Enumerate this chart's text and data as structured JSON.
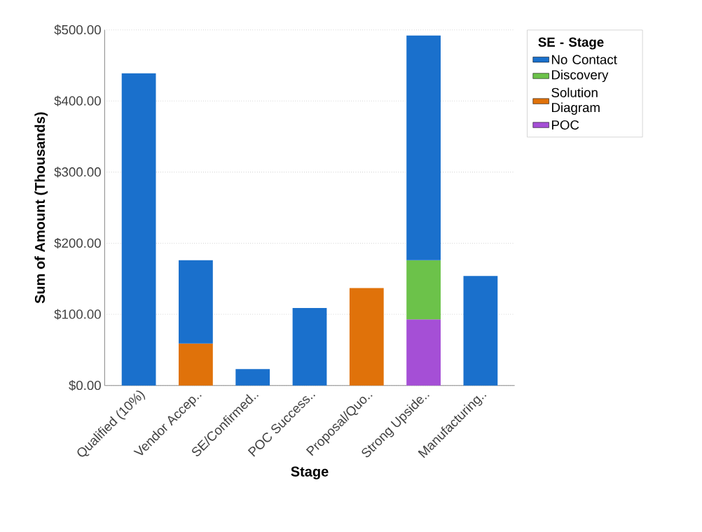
{
  "chart_data": {
    "type": "bar",
    "stacked": true,
    "xlabel": "Stage",
    "ylabel": "Sum of Amount (Thousands)",
    "legend_title": "SE - Stage",
    "legend": "right",
    "grid": "y",
    "categories": [
      "Qualified (10%)",
      "Vendor Accep..",
      "SE/Confirmed..",
      "POC Success..",
      "Proposal/Quo..",
      "Strong Upside..",
      "Manufacturing.."
    ],
    "series": [
      {
        "name": "POC",
        "color": "#a54fd6",
        "values": [
          null,
          null,
          null,
          null,
          null,
          93,
          null
        ]
      },
      {
        "name": "Solution Diagram",
        "color": "#e0720a",
        "values": [
          null,
          59,
          null,
          null,
          137,
          null,
          null
        ]
      },
      {
        "name": "Discovery",
        "color": "#6cc24a",
        "values": [
          null,
          null,
          null,
          null,
          null,
          83,
          null
        ]
      },
      {
        "name": "No Contact",
        "color": "#1a70cc",
        "values": [
          439,
          117,
          23,
          109,
          null,
          316,
          154
        ]
      }
    ],
    "ylim": [
      0,
      500
    ],
    "yticks": [
      {
        "value": 0,
        "label": "$0.00"
      },
      {
        "value": 100,
        "label": "$100.00"
      },
      {
        "value": 200,
        "label": "$200.00"
      },
      {
        "value": 300,
        "label": "$300.00"
      },
      {
        "value": 400,
        "label": "$400.00"
      },
      {
        "value": 500,
        "label": "$500.00"
      }
    ]
  }
}
